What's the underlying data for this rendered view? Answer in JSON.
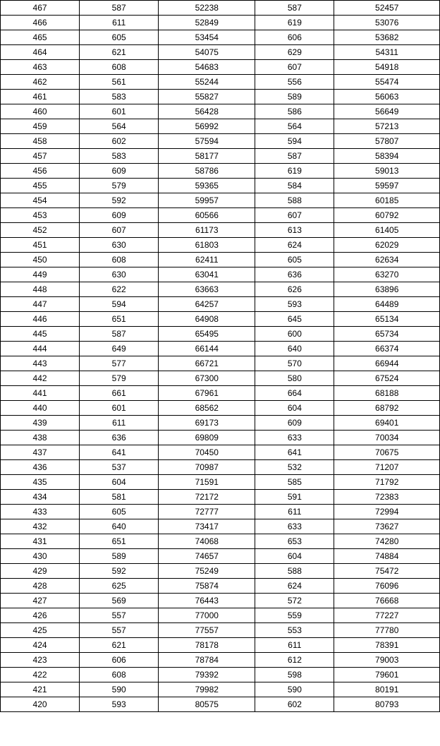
{
  "table": {
    "border_color": "#000000",
    "background_color": "#ffffff",
    "font_size": 12,
    "cell_align": "center",
    "column_widths_pct": [
      18,
      18,
      22,
      18,
      24
    ],
    "rows": [
      [
        467,
        587,
        52238,
        587,
        52457
      ],
      [
        466,
        611,
        52849,
        619,
        53076
      ],
      [
        465,
        605,
        53454,
        606,
        53682
      ],
      [
        464,
        621,
        54075,
        629,
        54311
      ],
      [
        463,
        608,
        54683,
        607,
        54918
      ],
      [
        462,
        561,
        55244,
        556,
        55474
      ],
      [
        461,
        583,
        55827,
        589,
        56063
      ],
      [
        460,
        601,
        56428,
        586,
        56649
      ],
      [
        459,
        564,
        56992,
        564,
        57213
      ],
      [
        458,
        602,
        57594,
        594,
        57807
      ],
      [
        457,
        583,
        58177,
        587,
        58394
      ],
      [
        456,
        609,
        58786,
        619,
        59013
      ],
      [
        455,
        579,
        59365,
        584,
        59597
      ],
      [
        454,
        592,
        59957,
        588,
        60185
      ],
      [
        453,
        609,
        60566,
        607,
        60792
      ],
      [
        452,
        607,
        61173,
        613,
        61405
      ],
      [
        451,
        630,
        61803,
        624,
        62029
      ],
      [
        450,
        608,
        62411,
        605,
        62634
      ],
      [
        449,
        630,
        63041,
        636,
        63270
      ],
      [
        448,
        622,
        63663,
        626,
        63896
      ],
      [
        447,
        594,
        64257,
        593,
        64489
      ],
      [
        446,
        651,
        64908,
        645,
        65134
      ],
      [
        445,
        587,
        65495,
        600,
        65734
      ],
      [
        444,
        649,
        66144,
        640,
        66374
      ],
      [
        443,
        577,
        66721,
        570,
        66944
      ],
      [
        442,
        579,
        67300,
        580,
        67524
      ],
      [
        441,
        661,
        67961,
        664,
        68188
      ],
      [
        440,
        601,
        68562,
        604,
        68792
      ],
      [
        439,
        611,
        69173,
        609,
        69401
      ],
      [
        438,
        636,
        69809,
        633,
        70034
      ],
      [
        437,
        641,
        70450,
        641,
        70675
      ],
      [
        436,
        537,
        70987,
        532,
        71207
      ],
      [
        435,
        604,
        71591,
        585,
        71792
      ],
      [
        434,
        581,
        72172,
        591,
        72383
      ],
      [
        433,
        605,
        72777,
        611,
        72994
      ],
      [
        432,
        640,
        73417,
        633,
        73627
      ],
      [
        431,
        651,
        74068,
        653,
        74280
      ],
      [
        430,
        589,
        74657,
        604,
        74884
      ],
      [
        429,
        592,
        75249,
        588,
        75472
      ],
      [
        428,
        625,
        75874,
        624,
        76096
      ],
      [
        427,
        569,
        76443,
        572,
        76668
      ],
      [
        426,
        557,
        77000,
        559,
        77227
      ],
      [
        425,
        557,
        77557,
        553,
        77780
      ],
      [
        424,
        621,
        78178,
        611,
        78391
      ],
      [
        423,
        606,
        78784,
        612,
        79003
      ],
      [
        422,
        608,
        79392,
        598,
        79601
      ],
      [
        421,
        590,
        79982,
        590,
        80191
      ],
      [
        420,
        593,
        80575,
        602,
        80793
      ]
    ]
  }
}
